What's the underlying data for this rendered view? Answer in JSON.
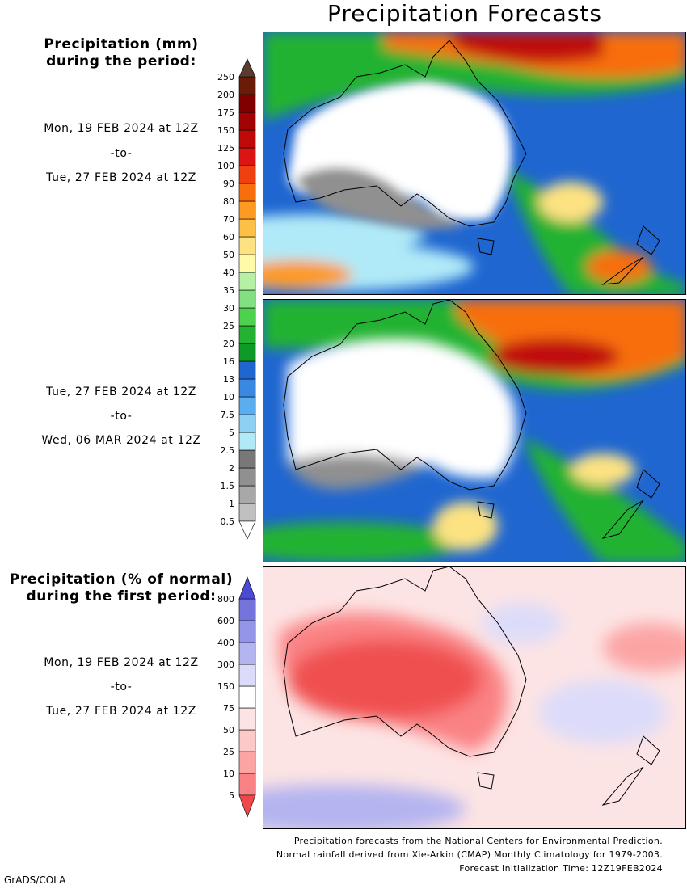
{
  "title": "Precipitation Forecasts",
  "legend1": {
    "heading_line1": "Precipitation (mm)",
    "heading_line2": "during the period:",
    "ticks": [
      "0.5",
      "1",
      "1.5",
      "2",
      "2.5",
      "5",
      "7.5",
      "10",
      "13",
      "16",
      "20",
      "25",
      "30",
      "35",
      "40",
      "50",
      "60",
      "70",
      "80",
      "90",
      "100",
      "125",
      "150",
      "175",
      "200",
      "250"
    ],
    "colors": [
      "#c0c0c0",
      "#a8a8a8",
      "#909090",
      "#787878",
      "#b0eaf8",
      "#8ed0f4",
      "#5aaef0",
      "#3a88e0",
      "#1f66d0",
      "#0e9a26",
      "#23b232",
      "#4ed24e",
      "#82e082",
      "#b6f0a2",
      "#fffaa8",
      "#fde282",
      "#fdc046",
      "#fc9a22",
      "#f86e0c",
      "#f04010",
      "#dc1414",
      "#c00a0a",
      "#a00404",
      "#800000",
      "#6a1c08"
    ],
    "low_arrow_color": "#ffffff",
    "high_arrow_color": "#5a3c2e"
  },
  "period1": {
    "start": "Mon, 19 FEB 2024 at 12Z",
    "sep": "-to-",
    "end": "Tue, 27 FEB 2024 at 12Z"
  },
  "period2": {
    "start": "Tue, 27 FEB 2024 at 12Z",
    "sep": "-to-",
    "end": "Wed, 06 MAR 2024 at 12Z"
  },
  "legend2": {
    "heading_line1": "Precipitation (% of normal)",
    "heading_line2": "during the first period:",
    "ticks": [
      "5",
      "10",
      "25",
      "50",
      "75",
      "150",
      "300",
      "400",
      "600",
      "800"
    ],
    "colors": [
      "#fa8284",
      "#fca4a4",
      "#fdc8c8",
      "#fde4e4",
      "#ffffff",
      "#dcdcfa",
      "#b4b4f0",
      "#9494e8",
      "#7474dc"
    ],
    "low_arrow_color": "#f04848",
    "high_arrow_color": "#4a4ad2"
  },
  "period3": {
    "start": "Mon, 19 FEB 2024 at 12Z",
    "sep": "-to-",
    "end": "Tue, 27 FEB 2024 at 12Z"
  },
  "footer": {
    "line1": "Precipitation forecasts from the National Centers for Environmental Prediction.",
    "line2": "Normal rainfall derived from Xie-Arkin (CMAP) Monthly Climatology for 1979-2003.",
    "line3": "Forecast Initialization Time: 12Z19FEB2024"
  },
  "credit": "GrADS/COLA"
}
